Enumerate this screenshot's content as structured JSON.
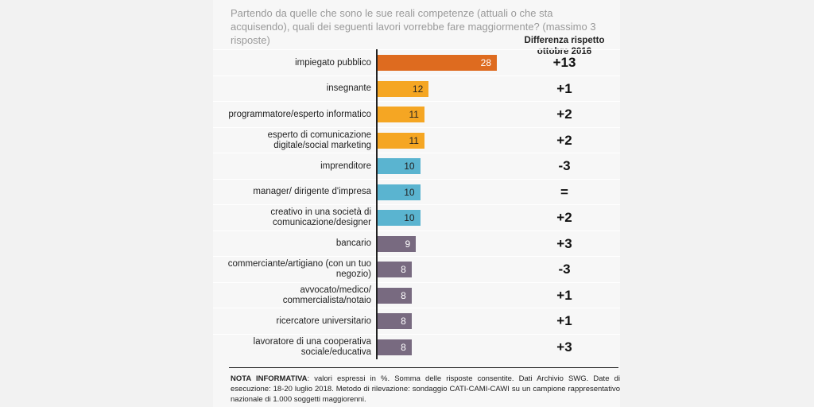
{
  "title": "Partendo da quelle che sono le sue reali competenze (attuali o che sta acquisendo), quali dei seguenti lavori vorrebbe fare maggiormente? (massimo 3 risposte)",
  "diff_header": "Differenza rispetto ottobre 2016",
  "colors": {
    "orange_dark": "#de6b1f",
    "orange": "#f5a623",
    "blue": "#5ab4d0",
    "purple": "#786a80"
  },
  "chart_data": {
    "type": "bar",
    "orientation": "horizontal",
    "categories": [
      "impiegato pubblico",
      "insegnante",
      "programmatore/esperto informatico",
      "esperto di comunicazione digitale/social marketing",
      "imprenditore",
      "manager/ dirigente d'impresa",
      "creativo in una società di comunicazione/designer",
      "bancario",
      "commerciante/artigiano (con un tuo negozio)",
      "avvocato/medico/ commercialista/notaio",
      "ricercatore universitario",
      "lavoratore di una cooperativa sociale/educativa"
    ],
    "values": [
      28,
      12,
      11,
      11,
      10,
      10,
      10,
      9,
      8,
      8,
      8,
      8
    ],
    "data_labels": [
      "28",
      "12",
      "11",
      "11",
      "10",
      "10",
      "10",
      "9",
      "8",
      "8",
      "8",
      "8"
    ],
    "differences": [
      "+13",
      "+1",
      "+2",
      "+2",
      "-3",
      "=",
      "+2",
      "+3",
      "-3",
      "+1",
      "+1",
      "+3"
    ],
    "bar_colors": [
      "#de6b1f",
      "#f5a623",
      "#f5a623",
      "#f5a623",
      "#5ab4d0",
      "#5ab4d0",
      "#5ab4d0",
      "#786a80",
      "#786a80",
      "#786a80",
      "#786a80",
      "#786a80"
    ],
    "xlim": [
      0,
      28
    ],
    "grid": false
  },
  "note": {
    "label": "NOTA INFORMATIVA",
    "text": ": valori espressi in %. Somma delle risposte consentite. Dati Archivio SWG. Date di esecuzione: 18-20 luglio 2018. Metodo di rilevazione: sondaggio CATI-CAMI-CAWI su un campione rappresentativo nazionale di 1.000 soggetti maggiorenni."
  }
}
